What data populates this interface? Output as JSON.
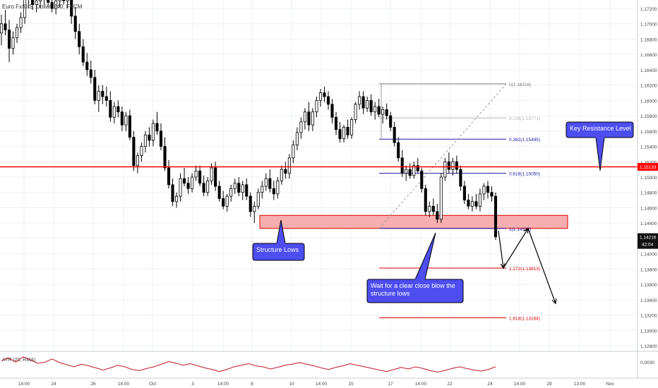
{
  "symbol_title": "Euro Fx/U.S. Dollar, 240, FXCM",
  "colors": {
    "up": "#ffffff",
    "down": "#000000",
    "candle_border": "#000000",
    "resistance": "#ff0000",
    "callout_fill": "#4d4df0",
    "zone_fill": "#f7aeae",
    "fib_blue": "#1a1aa8",
    "fib_red": "#e00000",
    "fib_gray": "#7a7a7a",
    "grid": "#eef0f3",
    "atr": "#c0182a"
  },
  "chart_data": {
    "type": "candlestick",
    "y_axis": {
      "range": [
        1.117,
        1.174
      ],
      "ticks": [
        "1.17200",
        "1.17000",
        "1.16800",
        "1.16600",
        "1.16400",
        "1.16200",
        "1.16000",
        "1.15800",
        "1.15600",
        "1.15400",
        "1.15200",
        "1.15000",
        "1.14800",
        "1.14600",
        "1.14400",
        "1.14200",
        "1.14000",
        "1.13800",
        "1.13600",
        "1.13400",
        "1.13200",
        "1.13000",
        "1.12800"
      ]
    },
    "x_axis": {
      "ticks": [
        "14:00",
        "24",
        "26",
        "14:00",
        "Oct",
        "3",
        "14:00",
        "8",
        "10",
        "14:00",
        "15",
        "17",
        "14:00",
        "22",
        "24",
        "14:00",
        "29",
        "13:00",
        "Nov"
      ]
    },
    "ohlc": [
      [
        1.1688,
        1.1712,
        1.1672,
        1.17
      ],
      [
        1.17,
        1.1718,
        1.1685,
        1.1692
      ],
      [
        1.1692,
        1.1705,
        1.165,
        1.1668
      ],
      [
        1.1668,
        1.169,
        1.166,
        1.1682
      ],
      [
        1.1682,
        1.17,
        1.1675,
        1.1695
      ],
      [
        1.1695,
        1.1715,
        1.1688,
        1.1708
      ],
      [
        1.1708,
        1.1738,
        1.17,
        1.1732
      ],
      [
        1.1732,
        1.1742,
        1.172,
        1.1736
      ],
      [
        1.1736,
        1.1742,
        1.1718,
        1.1725
      ],
      [
        1.1725,
        1.174,
        1.1715,
        1.173
      ],
      [
        1.173,
        1.1742,
        1.172,
        1.1735
      ],
      [
        1.1735,
        1.1742,
        1.1725,
        1.1732
      ],
      [
        1.1732,
        1.1742,
        1.1722,
        1.1728
      ],
      [
        1.1728,
        1.1738,
        1.1715,
        1.172
      ],
      [
        1.172,
        1.1735,
        1.1712,
        1.173
      ],
      [
        1.173,
        1.1742,
        1.1722,
        1.1736
      ],
      [
        1.1736,
        1.1742,
        1.1725,
        1.173
      ],
      [
        1.173,
        1.174,
        1.172,
        1.1735
      ],
      [
        1.1735,
        1.1742,
        1.17,
        1.171
      ],
      [
        1.171,
        1.1722,
        1.168,
        1.169
      ],
      [
        1.169,
        1.17,
        1.166,
        1.167
      ],
      [
        1.167,
        1.168,
        1.1645,
        1.165
      ],
      [
        1.165,
        1.1662,
        1.1632,
        1.164
      ],
      [
        1.164,
        1.1652,
        1.1622,
        1.163
      ],
      [
        1.163,
        1.164,
        1.1595,
        1.16
      ],
      [
        1.16,
        1.162,
        1.1585,
        1.1612
      ],
      [
        1.1612,
        1.162,
        1.1595,
        1.1605
      ],
      [
        1.1605,
        1.1618,
        1.1592,
        1.16
      ],
      [
        1.16,
        1.1612,
        1.1572,
        1.1578
      ],
      [
        1.1578,
        1.1598,
        1.157,
        1.1592
      ],
      [
        1.1592,
        1.16,
        1.1578,
        1.1585
      ],
      [
        1.1585,
        1.1592,
        1.156,
        1.1568
      ],
      [
        1.1568,
        1.1585,
        1.156,
        1.158
      ],
      [
        1.158,
        1.1588,
        1.1548,
        1.1552
      ],
      [
        1.1552,
        1.156,
        1.1508,
        1.1515
      ],
      [
        1.1515,
        1.1532,
        1.1505,
        1.1528
      ],
      [
        1.1528,
        1.1545,
        1.152,
        1.154
      ],
      [
        1.154,
        1.156,
        1.1532,
        1.1555
      ],
      [
        1.1555,
        1.1565,
        1.154,
        1.1548
      ],
      [
        1.1548,
        1.1575,
        1.154,
        1.157
      ],
      [
        1.157,
        1.1585,
        1.1555,
        1.156
      ],
      [
        1.156,
        1.157,
        1.1535,
        1.154
      ],
      [
        1.154,
        1.1552,
        1.1508,
        1.1512
      ],
      [
        1.1512,
        1.1522,
        1.1485,
        1.149
      ],
      [
        1.149,
        1.1498,
        1.1462,
        1.1468
      ],
      [
        1.1468,
        1.148,
        1.146,
        1.1475
      ],
      [
        1.1475,
        1.1505,
        1.1468,
        1.1498
      ],
      [
        1.1498,
        1.1512,
        1.1488,
        1.1492
      ],
      [
        1.1492,
        1.15,
        1.1478,
        1.1485
      ],
      [
        1.1485,
        1.1505,
        1.148,
        1.15
      ],
      [
        1.15,
        1.1515,
        1.1495,
        1.1508
      ],
      [
        1.1508,
        1.1515,
        1.1488,
        1.1492
      ],
      [
        1.1492,
        1.1502,
        1.1475,
        1.148
      ],
      [
        1.148,
        1.15,
        1.1475,
        1.1495
      ],
      [
        1.1495,
        1.1518,
        1.149,
        1.1512
      ],
      [
        1.1512,
        1.152,
        1.1482,
        1.1488
      ],
      [
        1.1488,
        1.1495,
        1.1468,
        1.1472
      ],
      [
        1.1472,
        1.1482,
        1.1458,
        1.1462
      ],
      [
        1.1462,
        1.1478,
        1.1455,
        1.1475
      ],
      [
        1.1475,
        1.149,
        1.1468,
        1.1485
      ],
      [
        1.1485,
        1.1498,
        1.1478,
        1.1492
      ],
      [
        1.1492,
        1.15,
        1.1475,
        1.148
      ],
      [
        1.148,
        1.1495,
        1.147,
        1.149
      ],
      [
        1.149,
        1.1498,
        1.147,
        1.1475
      ],
      [
        1.1475,
        1.148,
        1.1448,
        1.1455
      ],
      [
        1.1455,
        1.1468,
        1.144,
        1.1462
      ],
      [
        1.1462,
        1.1485,
        1.1458,
        1.148
      ],
      [
        1.148,
        1.1495,
        1.1472,
        1.1488
      ],
      [
        1.1488,
        1.1505,
        1.1482,
        1.1498
      ],
      [
        1.1498,
        1.151,
        1.148,
        1.1485
      ],
      [
        1.1485,
        1.1495,
        1.147,
        1.1478
      ],
      [
        1.1478,
        1.15,
        1.1472,
        1.1495
      ],
      [
        1.1495,
        1.1515,
        1.149,
        1.151
      ],
      [
        1.151,
        1.152,
        1.1498,
        1.1505
      ],
      [
        1.1505,
        1.153,
        1.1498,
        1.1525
      ],
      [
        1.1525,
        1.1548,
        1.1518,
        1.1542
      ],
      [
        1.1542,
        1.1565,
        1.1535,
        1.1558
      ],
      [
        1.1558,
        1.1578,
        1.155,
        1.1572
      ],
      [
        1.1572,
        1.159,
        1.1562,
        1.1585
      ],
      [
        1.1585,
        1.1598,
        1.156,
        1.1568
      ],
      [
        1.1568,
        1.159,
        1.156,
        1.1585
      ],
      [
        1.1585,
        1.1605,
        1.1578,
        1.16
      ],
      [
        1.16,
        1.1615,
        1.1592,
        1.161
      ],
      [
        1.161,
        1.1618,
        1.1598,
        1.1605
      ],
      [
        1.1605,
        1.1612,
        1.1588,
        1.1595
      ],
      [
        1.1595,
        1.1602,
        1.157,
        1.1578
      ],
      [
        1.1578,
        1.1585,
        1.1555,
        1.1562
      ],
      [
        1.1562,
        1.1572,
        1.1545,
        1.155
      ],
      [
        1.155,
        1.1568,
        1.1545,
        1.1565
      ],
      [
        1.1565,
        1.1575,
        1.155,
        1.1555
      ],
      [
        1.1555,
        1.1578,
        1.155,
        1.1575
      ],
      [
        1.1575,
        1.1598,
        1.157,
        1.1595
      ],
      [
        1.1595,
        1.1612,
        1.1588,
        1.1605
      ],
      [
        1.1605,
        1.1612,
        1.1582,
        1.159
      ],
      [
        1.159,
        1.1605,
        1.1585,
        1.16
      ],
      [
        1.16,
        1.1608,
        1.158,
        1.1585
      ],
      [
        1.1585,
        1.1598,
        1.1575,
        1.1592
      ],
      [
        1.1592,
        1.1602,
        1.1578,
        1.1582
      ],
      [
        1.1582,
        1.1592,
        1.157,
        1.1588
      ],
      [
        1.1588,
        1.1596,
        1.1575,
        1.158
      ],
      [
        1.158,
        1.1585,
        1.156,
        1.1565
      ],
      [
        1.1565,
        1.1572,
        1.154,
        1.1545
      ],
      [
        1.1545,
        1.1552,
        1.152,
        1.1525
      ],
      [
        1.1525,
        1.1535,
        1.15,
        1.1505
      ],
      [
        1.1505,
        1.1515,
        1.1495,
        1.151
      ],
      [
        1.151,
        1.1518,
        1.1498,
        1.1502
      ],
      [
        1.1502,
        1.152,
        1.1498,
        1.1515
      ],
      [
        1.1515,
        1.1525,
        1.1505,
        1.1508
      ],
      [
        1.1508,
        1.1512,
        1.148,
        1.1485
      ],
      [
        1.1485,
        1.149,
        1.145,
        1.1455
      ],
      [
        1.1455,
        1.1468,
        1.1448,
        1.1462
      ],
      [
        1.1462,
        1.1472,
        1.145,
        1.1455
      ],
      [
        1.1455,
        1.1465,
        1.144,
        1.1445
      ],
      [
        1.1445,
        1.1505,
        1.144,
        1.15
      ],
      [
        1.15,
        1.1525,
        1.1495,
        1.152
      ],
      [
        1.152,
        1.1532,
        1.1505,
        1.151
      ],
      [
        1.151,
        1.1525,
        1.1502,
        1.152
      ],
      [
        1.152,
        1.1528,
        1.1505,
        1.151
      ],
      [
        1.151,
        1.1515,
        1.1482,
        1.1488
      ],
      [
        1.1488,
        1.1495,
        1.1465,
        1.147
      ],
      [
        1.147,
        1.1478,
        1.1458,
        1.1462
      ],
      [
        1.1462,
        1.1475,
        1.1455,
        1.1468
      ],
      [
        1.1468,
        1.1478,
        1.1458,
        1.1462
      ],
      [
        1.1462,
        1.1485,
        1.1455,
        1.1478
      ],
      [
        1.1478,
        1.1492,
        1.147,
        1.1488
      ],
      [
        1.1488,
        1.1495,
        1.1472,
        1.148
      ],
      [
        1.148,
        1.1488,
        1.1468,
        1.1475
      ],
      [
        1.1475,
        1.148,
        1.1418,
        1.1422
      ]
    ],
    "resistance_line": {
      "price": 1.15133,
      "label": "1.15133"
    },
    "last_price": {
      "price": 1.14216,
      "label": "1.14216",
      "countdown": "42:04"
    },
    "fibonacci": [
      {
        "ratio": "0",
        "price": 1.16216,
        "label": "0(1.16216)",
        "style": "gray"
      },
      {
        "ratio": "0.236",
        "price": 1.15771,
        "label": "0.236(1.15771)",
        "style": "lightgray"
      },
      {
        "ratio": "0.382",
        "price": 1.15495,
        "label": "0.382(1.15495)",
        "style": "blue"
      },
      {
        "ratio": "0.618",
        "price": 1.1505,
        "label": "0.618(1.15050)",
        "style": "blue"
      },
      {
        "ratio": "1",
        "price": 1.1433,
        "label": "1(1.14330)",
        "style": "blue"
      },
      {
        "ratio": "1.272",
        "price": 1.13813,
        "label": "1.272(1.13813)",
        "style": "red"
      },
      {
        "ratio": "1.618",
        "price": 1.13164,
        "label": "1.618(1.13164)",
        "style": "red"
      }
    ],
    "support_zone": {
      "top": 1.145,
      "bottom": 1.1433
    },
    "projected_path_prices": [
      1.143,
      1.13813,
      1.1433,
      1.1335
    ],
    "annotations": [
      {
        "id": "key-resistance",
        "text": [
          "Key Resistance Level"
        ]
      },
      {
        "id": "structure-lows",
        "text": [
          "Structure Lows"
        ]
      },
      {
        "id": "wait-close",
        "text": [
          "Wait for a clear close blow the",
          "structure lows"
        ]
      }
    ],
    "atr": {
      "label": "ATR (20, RMA)",
      "y_ticks": [
        "0.0030",
        "0.0020"
      ],
      "values": [
        0.00295,
        0.00305,
        0.0029,
        0.0031,
        0.00298,
        0.00285,
        0.0029,
        0.00302,
        0.00288,
        0.0028,
        0.00272,
        0.00282,
        0.00276,
        0.00268,
        0.0026,
        0.00268,
        0.00278,
        0.00272,
        0.00262,
        0.00258,
        0.00266,
        0.00272,
        0.00282,
        0.00292,
        0.00286,
        0.00278,
        0.00284,
        0.00276,
        0.00268,
        0.00262,
        0.00254,
        0.00262,
        0.00272,
        0.00278,
        0.00284,
        0.00276,
        0.00272,
        0.00264,
        0.0027,
        0.00278,
        0.00282,
        0.00288,
        0.00282,
        0.00276,
        0.00268,
        0.00262,
        0.0027,
        0.00276,
        0.00284,
        0.00278,
        0.00272,
        0.00266,
        0.0026,
        0.00254,
        0.00262,
        0.0027,
        0.00264,
        0.00272,
        0.00266,
        0.00258,
        0.00252,
        0.00258,
        0.00266,
        0.00272,
        0.00266,
        0.0026,
        0.00256,
        0.00262,
        0.00272
      ]
    }
  }
}
